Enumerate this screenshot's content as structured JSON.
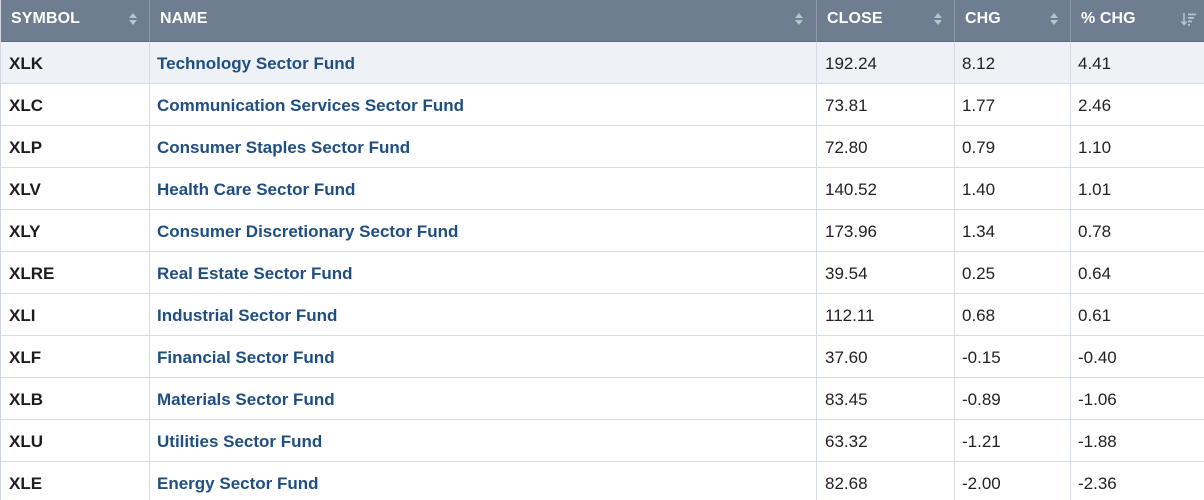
{
  "columns": [
    {
      "key": "symbol",
      "label": "SYMBOL",
      "sort_icon": "sort-both-icon"
    },
    {
      "key": "name",
      "label": "NAME",
      "sort_icon": "sort-both-icon"
    },
    {
      "key": "close",
      "label": "CLOSE",
      "sort_icon": "sort-both-icon"
    },
    {
      "key": "chg",
      "label": "CHG",
      "sort_icon": "sort-both-icon"
    },
    {
      "key": "pct_chg",
      "label": "% CHG",
      "sort_icon": "sort-descending-icon"
    }
  ],
  "rows": [
    {
      "symbol": "XLK",
      "name": "Technology Sector Fund",
      "close": "192.24",
      "chg": "8.12",
      "pct_chg": "4.41"
    },
    {
      "symbol": "XLC",
      "name": "Communication Services Sector Fund",
      "close": "73.81",
      "chg": "1.77",
      "pct_chg": "2.46"
    },
    {
      "symbol": "XLP",
      "name": "Consumer Staples Sector Fund",
      "close": "72.80",
      "chg": "0.79",
      "pct_chg": "1.10"
    },
    {
      "symbol": "XLV",
      "name": "Health Care Sector Fund",
      "close": "140.52",
      "chg": "1.40",
      "pct_chg": "1.01"
    },
    {
      "symbol": "XLY",
      "name": "Consumer Discretionary Sector Fund",
      "close": "173.96",
      "chg": "1.34",
      "pct_chg": "0.78"
    },
    {
      "symbol": "XLRE",
      "name": "Real Estate Sector Fund",
      "close": "39.54",
      "chg": "0.25",
      "pct_chg": "0.64"
    },
    {
      "symbol": "XLI",
      "name": "Industrial Sector Fund",
      "close": "112.11",
      "chg": "0.68",
      "pct_chg": "0.61"
    },
    {
      "symbol": "XLF",
      "name": "Financial Sector Fund",
      "close": "37.60",
      "chg": "-0.15",
      "pct_chg": "-0.40"
    },
    {
      "symbol": "XLB",
      "name": "Materials Sector Fund",
      "close": "83.45",
      "chg": "-0.89",
      "pct_chg": "-1.06"
    },
    {
      "symbol": "XLU",
      "name": "Utilities Sector Fund",
      "close": "63.32",
      "chg": "-1.21",
      "pct_chg": "-1.88"
    },
    {
      "symbol": "XLE",
      "name": "Energy Sector Fund",
      "close": "82.68",
      "chg": "-2.00",
      "pct_chg": "-2.36"
    }
  ],
  "colors": {
    "header_bg": "#6e7d8f",
    "header_text": "#ffffff",
    "link": "#1f4e82",
    "first_row_bg": "#eef1f5",
    "grid": "#d6dce4"
  }
}
